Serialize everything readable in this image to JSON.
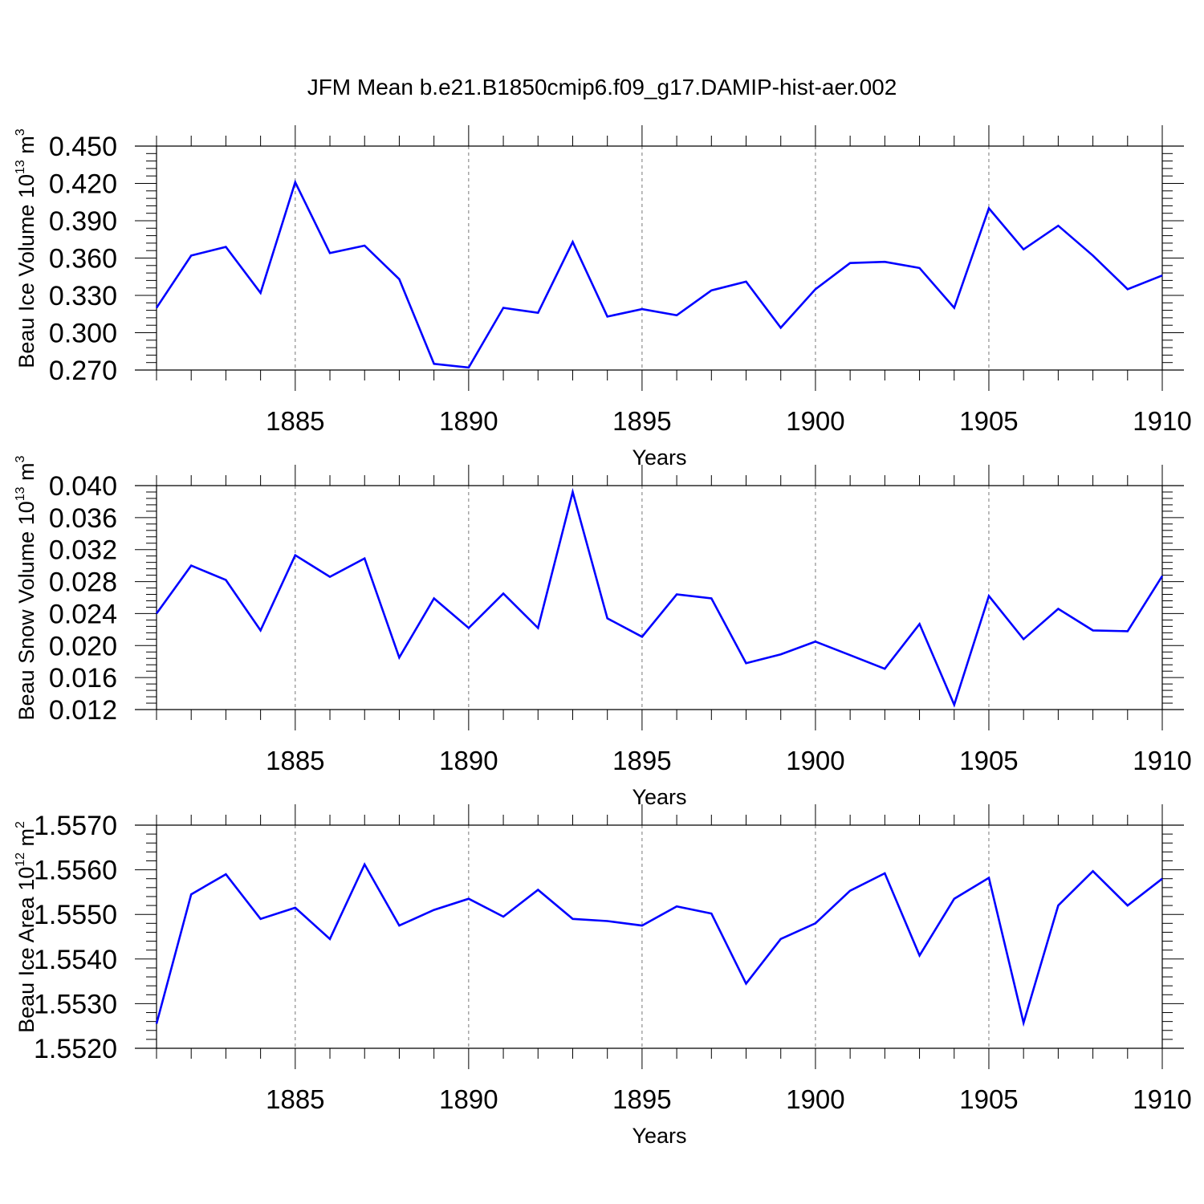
{
  "title": "JFM Mean b.e21.B1850cmip6.f09_g17.DAMIP-hist-aer.002",
  "colors": {
    "line": "#0000ff",
    "axes": "#000000",
    "grid": "#777777"
  },
  "chart_data": [
    {
      "type": "line",
      "ylabel": {
        "text": "Beau Ice Volume 10",
        "exp": "13",
        "unit": " m",
        "unit_exp": "3"
      },
      "xlabel": "Years",
      "xlim": [
        1881,
        1910
      ],
      "ylim": [
        0.27,
        0.45
      ],
      "yticks": [
        "0.450",
        "0.420",
        "0.390",
        "0.360",
        "0.330",
        "0.300",
        "0.270"
      ],
      "xticks": [
        "1885",
        "1890",
        "1895",
        "1900",
        "1905",
        "1910"
      ],
      "grid": "vertical dashed at labeled years",
      "x": [
        1881,
        1882,
        1883,
        1884,
        1885,
        1886,
        1887,
        1888,
        1889,
        1890,
        1891,
        1892,
        1893,
        1894,
        1895,
        1896,
        1897,
        1898,
        1899,
        1900,
        1901,
        1902,
        1903,
        1904,
        1905,
        1906,
        1907,
        1908,
        1909,
        1910
      ],
      "values": [
        0.32,
        0.362,
        0.369,
        0.332,
        0.421,
        0.364,
        0.37,
        0.343,
        0.275,
        0.272,
        0.32,
        0.316,
        0.373,
        0.313,
        0.319,
        0.314,
        0.334,
        0.341,
        0.304,
        0.335,
        0.356,
        0.357,
        0.352,
        0.32,
        0.4,
        0.367,
        0.386,
        0.362,
        0.335,
        0.346
      ]
    },
    {
      "type": "line",
      "ylabel": {
        "text": "Beau Snow Volume 10",
        "exp": "13",
        "unit": " m",
        "unit_exp": "3"
      },
      "xlabel": "Years",
      "xlim": [
        1881,
        1910
      ],
      "ylim": [
        0.012,
        0.04
      ],
      "yticks": [
        "0.040",
        "0.036",
        "0.032",
        "0.028",
        "0.024",
        "0.020",
        "0.016",
        "0.012"
      ],
      "xticks": [
        "1885",
        "1890",
        "1895",
        "1900",
        "1905",
        "1910"
      ],
      "grid": "vertical dashed at labeled years",
      "x": [
        1881,
        1882,
        1883,
        1884,
        1885,
        1886,
        1887,
        1888,
        1889,
        1890,
        1891,
        1892,
        1893,
        1894,
        1895,
        1896,
        1897,
        1898,
        1899,
        1900,
        1901,
        1902,
        1903,
        1904,
        1905,
        1906,
        1907,
        1908,
        1909,
        1910
      ],
      "values": [
        0.024,
        0.03,
        0.0282,
        0.0219,
        0.0313,
        0.0286,
        0.0309,
        0.0185,
        0.0259,
        0.0222,
        0.0265,
        0.0222,
        0.0392,
        0.0234,
        0.0211,
        0.0264,
        0.0259,
        0.0178,
        0.0189,
        0.0205,
        0.0188,
        0.0171,
        0.0227,
        0.0126,
        0.0262,
        0.0208,
        0.0246,
        0.0219,
        0.0218,
        0.0287
      ]
    },
    {
      "type": "line",
      "ylabel": {
        "text": "Beau Ice Area 10",
        "exp": "12",
        "unit": " m",
        "unit_exp": "2"
      },
      "xlabel": "Years",
      "xlim": [
        1881,
        1910
      ],
      "ylim": [
        1.552,
        1.557
      ],
      "yticks": [
        "1.5570",
        "1.5560",
        "1.5550",
        "1.5540",
        "1.5530",
        "1.5520"
      ],
      "xticks": [
        "1885",
        "1890",
        "1895",
        "1900",
        "1905",
        "1910"
      ],
      "grid": "vertical dashed at labeled years",
      "x": [
        1881,
        1882,
        1883,
        1884,
        1885,
        1886,
        1887,
        1888,
        1889,
        1890,
        1891,
        1892,
        1893,
        1894,
        1895,
        1896,
        1897,
        1898,
        1899,
        1900,
        1901,
        1902,
        1903,
        1904,
        1905,
        1906,
        1907,
        1908,
        1909,
        1910
      ],
      "values": [
        1.55255,
        1.55545,
        1.5559,
        1.5549,
        1.55515,
        1.55445,
        1.55612,
        1.55475,
        1.5551,
        1.55535,
        1.55495,
        1.55555,
        1.5549,
        1.55485,
        1.55475,
        1.55518,
        1.55502,
        1.55345,
        1.55445,
        1.5548,
        1.55553,
        1.55592,
        1.55408,
        1.55535,
        1.55582,
        1.55257,
        1.5552,
        1.55597,
        1.5552,
        1.5558
      ]
    }
  ]
}
